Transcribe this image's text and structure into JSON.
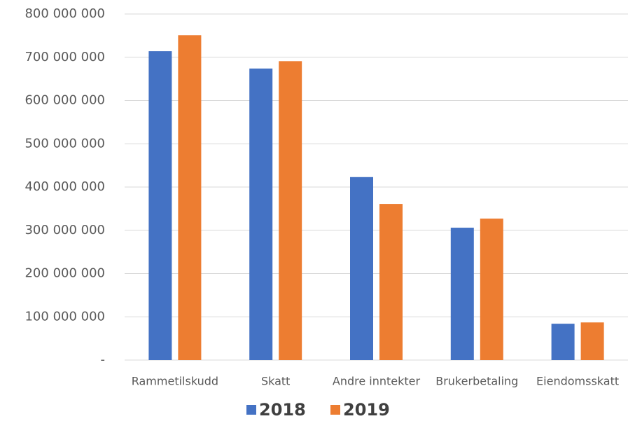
{
  "chart_data": {
    "type": "bar",
    "categories": [
      "Rammetilskudd",
      "Skatt",
      "Andre inntekter",
      "Brukerbetaling",
      "Eiendomsskatt"
    ],
    "series": [
      {
        "name": "2018",
        "color": "#4472c4",
        "values": [
          714000000,
          674000000,
          423000000,
          306000000,
          84000000
        ]
      },
      {
        "name": "2019",
        "color": "#ed7d31",
        "values": [
          751000000,
          691000000,
          361000000,
          327000000,
          87000000
        ]
      }
    ],
    "ylim": [
      0,
      800000000
    ],
    "yticks": [
      {
        "value": 0,
        "label": "-"
      },
      {
        "value": 100000000,
        "label": "100 000 000"
      },
      {
        "value": 200000000,
        "label": "200 000 000"
      },
      {
        "value": 300000000,
        "label": "300 000 000"
      },
      {
        "value": 400000000,
        "label": "400 000 000"
      },
      {
        "value": 500000000,
        "label": "500 000 000"
      },
      {
        "value": 600000000,
        "label": "600 000 000"
      },
      {
        "value": 700000000,
        "label": "700 000 000"
      },
      {
        "value": 800000000,
        "label": "800 000 000"
      }
    ],
    "grid": true,
    "legend": "bottom"
  }
}
